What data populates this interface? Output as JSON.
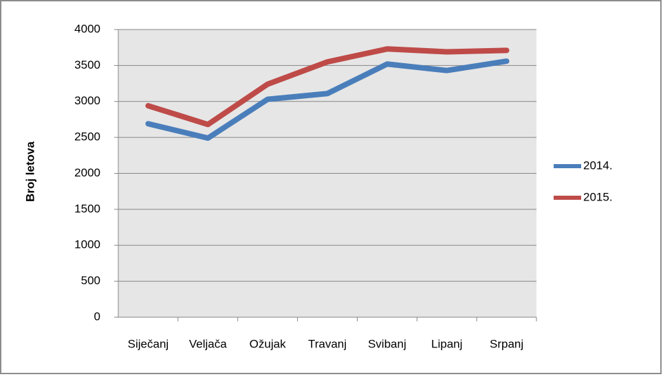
{
  "chart_data": {
    "type": "line",
    "y_label": "Broj letova",
    "categories": [
      "Siječanj",
      "Veljača",
      "Ožujak",
      "Travanj",
      "Svibanj",
      "Lipanj",
      "Srpanj"
    ],
    "series": [
      {
        "name": "2014.",
        "color": "#4a7ebb",
        "values": [
          2690,
          2490,
          3030,
          3110,
          3520,
          3430,
          3560
        ]
      },
      {
        "name": "2015.",
        "color": "#be4b48",
        "values": [
          2940,
          2680,
          3240,
          3550,
          3730,
          3690,
          3710
        ]
      }
    ],
    "ylim": [
      0,
      4000
    ],
    "yticks": [
      0,
      500,
      1000,
      1500,
      2000,
      2500,
      3000,
      3500,
      4000
    ],
    "grid": true,
    "legend": "right"
  }
}
